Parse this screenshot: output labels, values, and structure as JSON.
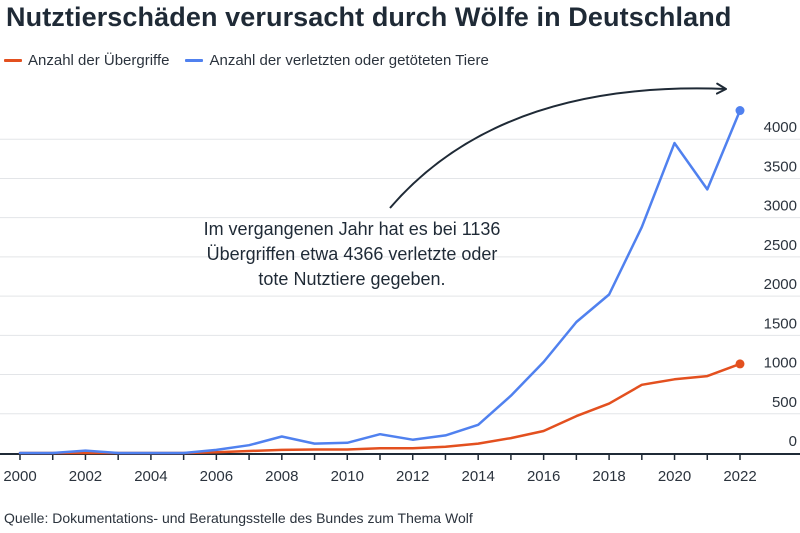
{
  "chart_data": {
    "type": "line",
    "title": "Nutztierschäden verursacht durch Wölfe in Deutschland",
    "x": [
      2000,
      2001,
      2002,
      2003,
      2004,
      2005,
      2006,
      2007,
      2008,
      2009,
      2010,
      2011,
      2012,
      2013,
      2014,
      2015,
      2016,
      2017,
      2018,
      2019,
      2020,
      2021,
      2022
    ],
    "series": [
      {
        "name": "Anzahl der Übergriffe",
        "color": "#e3501f",
        "values": [
          0,
          0,
          0,
          0,
          0,
          0,
          10,
          25,
          40,
          45,
          45,
          60,
          60,
          80,
          120,
          190,
          280,
          470,
          630,
          870,
          940,
          980,
          1136
        ]
      },
      {
        "name": "Anzahl der verletzten oder getöteten Tiere",
        "color": "#5081ef",
        "values": [
          0,
          0,
          30,
          0,
          0,
          0,
          40,
          100,
          210,
          120,
          130,
          240,
          170,
          225,
          360,
          730,
          1160,
          1670,
          2020,
          2880,
          3950,
          3360,
          4366
        ]
      }
    ],
    "xticks": [
      "2000",
      "2002",
      "2004",
      "2006",
      "2008",
      "2010",
      "2012",
      "2014",
      "2016",
      "2018",
      "2020",
      "2022"
    ],
    "yticks": [
      "0",
      "500",
      "1000",
      "1500",
      "2000",
      "2500",
      "3000",
      "3500",
      "4000"
    ],
    "ylim": [
      0,
      4500
    ],
    "xlim": [
      2000,
      2022
    ],
    "grid": true,
    "legend": "top-left",
    "annotation": "Im vergangenen Jahr hat es bei 1136 Übergriffen etwa 4366 verletzte oder tote Nutztiere gegeben.",
    "source": "Quelle: Dokumentations- und Beratungsstelle des Bundes zum Thema Wolf"
  }
}
